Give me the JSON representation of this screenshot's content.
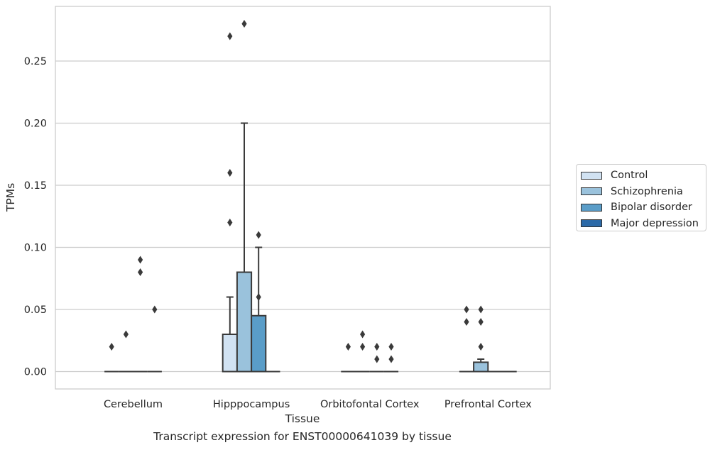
{
  "chart_data": {
    "type": "box",
    "title": "",
    "xlabel": "Tissue",
    "ylabel": "TPMs",
    "ylim": [
      -0.0135,
      0.2935
    ],
    "yticks": [
      0.0,
      0.05,
      0.1,
      0.15,
      0.2,
      0.25
    ],
    "ytick_labels": [
      "0.00",
      "0.05",
      "0.10",
      "0.15",
      "0.20",
      "0.25"
    ],
    "categories": [
      "Cerebellum",
      "Hipppocampus",
      "Orbitofontal Cortex",
      "Prefrontal Cortex"
    ],
    "grid": true,
    "legend_placement": "right",
    "series": [
      {
        "name": "Control",
        "color": "#d1e2f2",
        "boxes": [
          {
            "q1": 0,
            "median": 0,
            "q3": 0,
            "whisker_low": 0,
            "whisker_high": 0,
            "outliers": [
              0.02
            ]
          },
          {
            "q1": 0,
            "median": 0,
            "q3": 0.03,
            "whisker_low": 0,
            "whisker_high": 0.06,
            "outliers": [
              0.27,
              0.16,
              0.12
            ]
          },
          {
            "q1": 0,
            "median": 0,
            "q3": 0,
            "whisker_low": 0,
            "whisker_high": 0,
            "outliers": [
              0.02
            ]
          },
          {
            "q1": 0,
            "median": 0,
            "q3": 0,
            "whisker_low": 0,
            "whisker_high": 0,
            "outliers": [
              0.05,
              0.04
            ]
          }
        ]
      },
      {
        "name": "Schizophrenia",
        "color": "#9ac2dc",
        "boxes": [
          {
            "q1": 0,
            "median": 0,
            "q3": 0,
            "whisker_low": 0,
            "whisker_high": 0,
            "outliers": [
              0.03
            ]
          },
          {
            "q1": 0,
            "median": 0,
            "q3": 0.08,
            "whisker_low": 0,
            "whisker_high": 0.2,
            "outliers": [
              0.28
            ]
          },
          {
            "q1": 0,
            "median": 0,
            "q3": 0,
            "whisker_low": 0,
            "whisker_high": 0,
            "outliers": [
              0.03,
              0.02
            ]
          },
          {
            "q1": 0,
            "median": 0,
            "q3": 0.0075,
            "whisker_low": 0,
            "whisker_high": 0.01,
            "outliers": [
              0.05,
              0.04,
              0.02
            ]
          }
        ]
      },
      {
        "name": "Bipolar disorder",
        "color": "#5a9dc8",
        "boxes": [
          {
            "q1": 0,
            "median": 0,
            "q3": 0,
            "whisker_low": 0,
            "whisker_high": 0,
            "outliers": [
              0.09,
              0.08
            ]
          },
          {
            "q1": 0,
            "median": 0,
            "q3": 0.045,
            "whisker_low": 0,
            "whisker_high": 0.1,
            "outliers": [
              0.11,
              0.06
            ]
          },
          {
            "q1": 0,
            "median": 0,
            "q3": 0,
            "whisker_low": 0,
            "whisker_high": 0,
            "outliers": [
              0.02,
              0.01
            ]
          },
          {
            "q1": 0,
            "median": 0,
            "q3": 0,
            "whisker_low": 0,
            "whisker_high": 0,
            "outliers": []
          }
        ]
      },
      {
        "name": "Major depression",
        "color": "#2c6aa8",
        "boxes": [
          {
            "q1": 0,
            "median": 0,
            "q3": 0,
            "whisker_low": 0,
            "whisker_high": 0,
            "outliers": [
              0.05
            ]
          },
          {
            "q1": 0,
            "median": 0,
            "q3": 0,
            "whisker_low": 0,
            "whisker_high": 0,
            "outliers": []
          },
          {
            "q1": 0,
            "median": 0,
            "q3": 0,
            "whisker_low": 0,
            "whisker_high": 0,
            "outliers": [
              0.02,
              0.01
            ]
          },
          {
            "q1": 0,
            "median": 0,
            "q3": 0,
            "whisker_low": 0,
            "whisker_high": 0,
            "outliers": []
          }
        ]
      }
    ]
  },
  "caption": "Transcript expression for ENST00000641039 by tissue"
}
